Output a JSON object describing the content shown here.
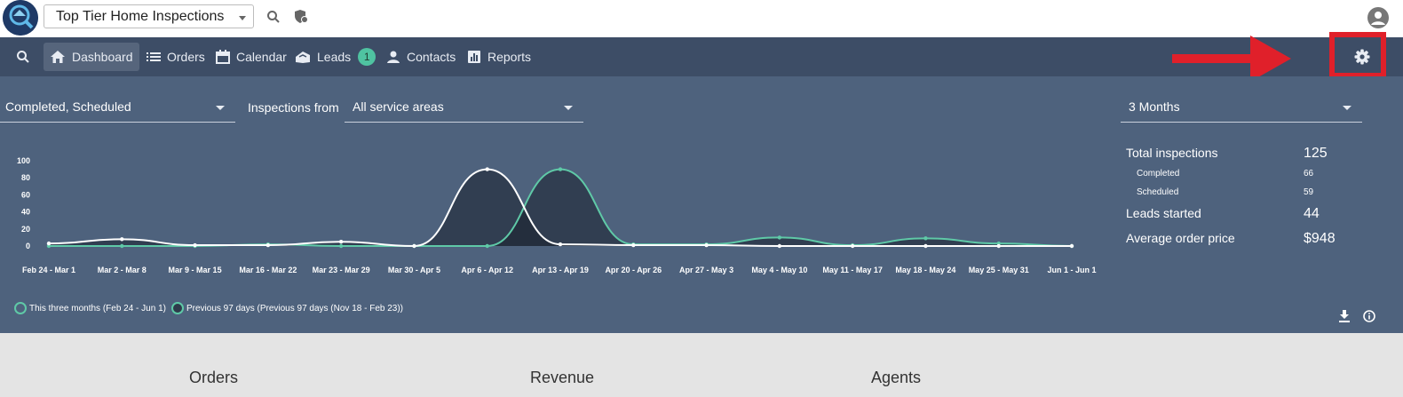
{
  "topbar": {
    "company": "Top Tier Home Inspections",
    "icons": [
      "search-icon",
      "shield-icon",
      "account-icon"
    ]
  },
  "nav": {
    "items": [
      {
        "label": "Dashboard",
        "icon": "home-icon"
      },
      {
        "label": "Orders",
        "icon": "list-icon"
      },
      {
        "label": "Calendar",
        "icon": "calendar-icon"
      },
      {
        "label": "Leads",
        "icon": "leads-icon",
        "badge": "1"
      },
      {
        "label": "Contacts",
        "icon": "person-icon"
      },
      {
        "label": "Reports",
        "icon": "reports-icon"
      }
    ],
    "settings_icon": "gear-icon"
  },
  "filters": {
    "status": "Completed, Scheduled",
    "inspections_from_label": "Inspections from",
    "service_area": "All service areas",
    "period": "3 Months"
  },
  "stats": {
    "total_label": "Total inspections",
    "total_value": "125",
    "completed_label": "Completed",
    "completed_value": "66",
    "scheduled_label": "Scheduled",
    "scheduled_value": "59",
    "leads_label": "Leads started",
    "leads_value": "44",
    "avg_label": "Average order price",
    "avg_value": "$948"
  },
  "chart_data": {
    "type": "line",
    "categories": [
      "Feb 24 - Mar 1",
      "Mar 2 - Mar 8",
      "Mar 9 - Mar 15",
      "Mar 16 - Mar 22",
      "Mar 23 - Mar 29",
      "Mar 30 - Apr 5",
      "Apr 6 - Apr 12",
      "Apr 13 - Apr 19",
      "Apr 20 - Apr 26",
      "Apr 27 - May 3",
      "May 4 - May 10",
      "May 11 - May 17",
      "May 18 - May 24",
      "May 25 - May 31",
      "Jun 1 - Jun 1"
    ],
    "yticks": [
      0,
      20,
      40,
      60,
      80,
      100
    ],
    "ylim": [
      0,
      100
    ],
    "series": [
      {
        "name": "This three months (Feb 24 - Jun 1)",
        "color": "#5fc9a7",
        "values": [
          0,
          0,
          0,
          2,
          0,
          0,
          0,
          90,
          2,
          2,
          10,
          1,
          9,
          3,
          0
        ]
      },
      {
        "name": "Previous 97 days (Previous 97 days (Nov 18 - Feb 23))",
        "color": "#ffffff",
        "values": [
          3,
          8,
          1,
          1,
          5,
          0,
          90,
          2,
          1,
          1,
          0,
          0,
          0,
          0,
          0
        ]
      }
    ]
  },
  "lower": {
    "orders": "Orders",
    "revenue": "Revenue",
    "agents": "Agents"
  }
}
